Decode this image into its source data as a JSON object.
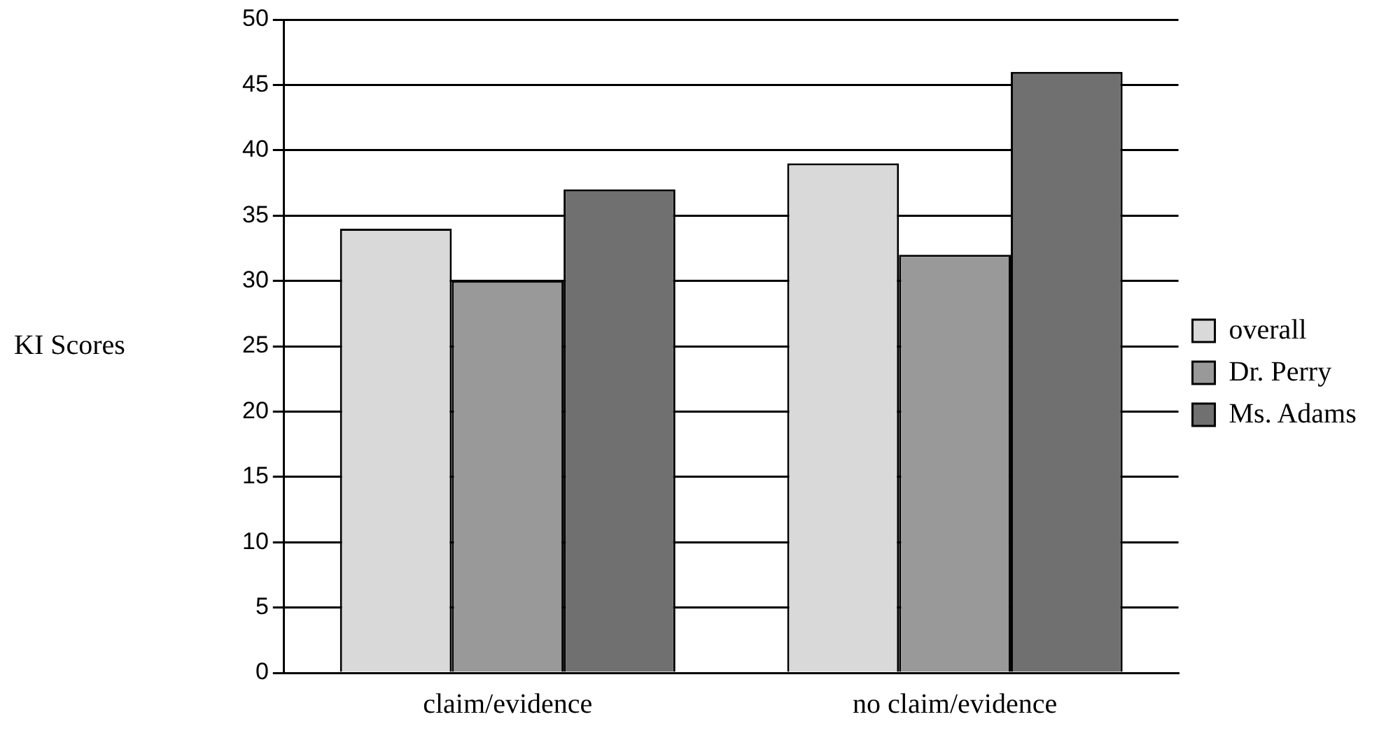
{
  "chart_data": {
    "type": "bar",
    "ylabel": "KI Scores",
    "categories": [
      "claim/evidence",
      "no claim/evidence"
    ],
    "series": [
      {
        "name": "overall",
        "color": "#d9d9d9",
        "values": [
          34,
          39
        ]
      },
      {
        "name": "Dr. Perry",
        "color": "#999999",
        "values": [
          30,
          32
        ]
      },
      {
        "name": "Ms. Adams",
        "color": "#707070",
        "values": [
          37,
          46
        ]
      }
    ],
    "ylim": [
      0,
      50
    ],
    "yticks": [
      0,
      5,
      10,
      15,
      20,
      25,
      30,
      35,
      40,
      45,
      50
    ],
    "grid": "y",
    "legend": "right"
  }
}
